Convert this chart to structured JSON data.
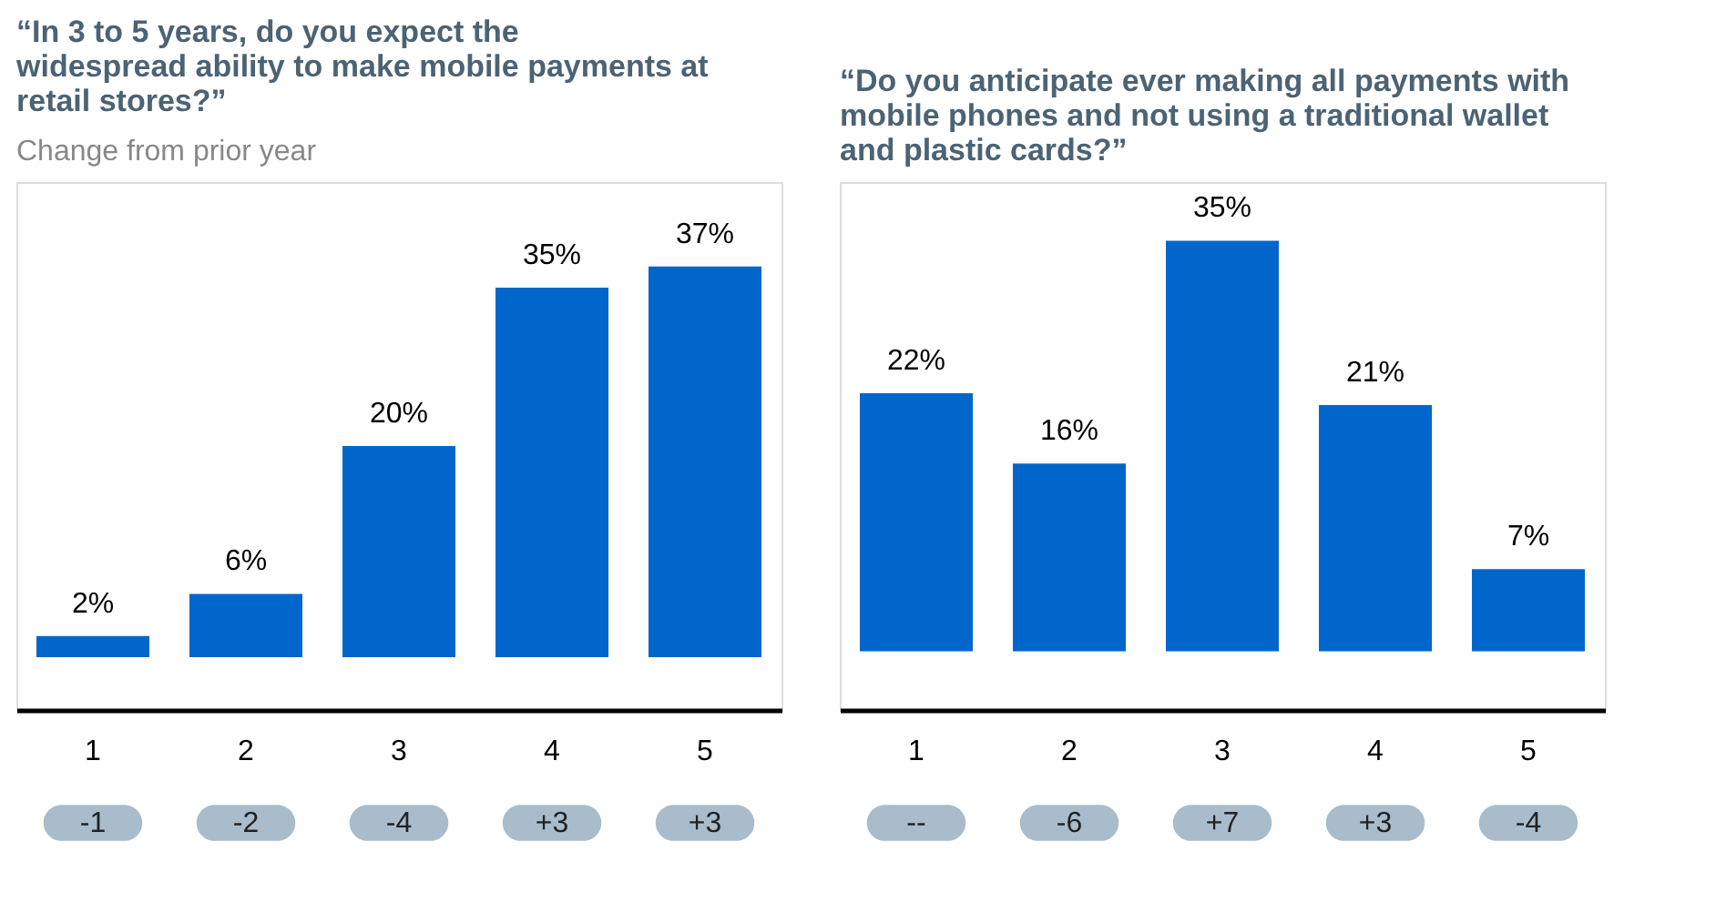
{
  "chart_data": [
    {
      "type": "bar",
      "title": [
        "“In 3 to 5 years, do you expect the",
        "widespread ability to make mobile payments at",
        "retail stores?”"
      ],
      "subtitle": "Change from prior year",
      "categories": [
        "1",
        "2",
        "3",
        "4",
        "5"
      ],
      "values": [
        2,
        6,
        20,
        35,
        37
      ],
      "value_labels": [
        "2%",
        "6%",
        "20%",
        "35%",
        "37%"
      ],
      "color": "#0066cc",
      "annotations": [
        "-1",
        "-2",
        "-4",
        "+3",
        "+3"
      ]
    },
    {
      "type": "bar",
      "title": [
        "“Do you anticipate ever making all payments with",
        "mobile phones and not using a traditional wallet",
        "and plastic cards?”"
      ],
      "categories": [
        "1",
        "2",
        "3",
        "4",
        "5"
      ],
      "values": [
        22,
        16,
        35,
        21,
        7
      ],
      "value_labels": [
        "22%",
        "16%",
        "35%",
        "21%",
        "7%"
      ],
      "color": "#0066cc",
      "annotations": [
        "--",
        "-6",
        "+7",
        "+3",
        "-4"
      ]
    }
  ]
}
